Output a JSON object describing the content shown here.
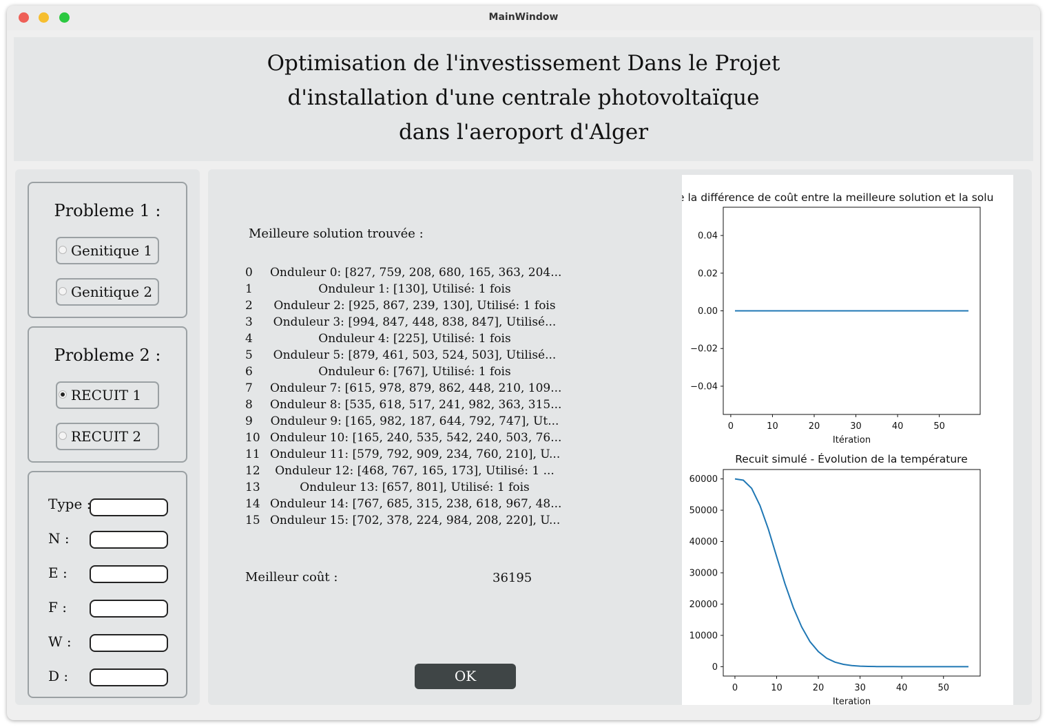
{
  "window": {
    "title": "MainWindow"
  },
  "header": {
    "line1": "Optimisation de l'investissement Dans le Projet",
    "line2": "d'installation d'une centrale photovoltaïque",
    "line3": "dans l'aeroport d'Alger"
  },
  "sidebar": {
    "problem1": {
      "title": "Probleme 1 :",
      "options": [
        {
          "label": "Genitique 1",
          "selected": false
        },
        {
          "label": "Genitique 2",
          "selected": false
        }
      ]
    },
    "problem2": {
      "title": "Probleme 2 :",
      "options": [
        {
          "label": "RECUIT 1",
          "selected": true
        },
        {
          "label": "RECUIT 2",
          "selected": false
        }
      ]
    },
    "params": [
      {
        "label": "Type :",
        "value": ""
      },
      {
        "label": "N   :",
        "value": ""
      },
      {
        "label": "E   :",
        "value": ""
      },
      {
        "label": "F   :",
        "value": ""
      },
      {
        "label": "W :",
        "value": ""
      },
      {
        "label": "D  :",
        "value": ""
      }
    ]
  },
  "results": {
    "best_solution_label": "Meilleure solution trouvée :",
    "rows": [
      {
        "index": "0",
        "text": "Onduleur 0: [827, 759, 208, 680, 165, 363, 204..."
      },
      {
        "index": "1",
        "text": "Onduleur 1: [130], Utilisé: 1 fois"
      },
      {
        "index": "2",
        "text": "Onduleur 2: [925, 867, 239, 130], Utilisé: 1 fois"
      },
      {
        "index": "3",
        "text": "Onduleur 3: [994, 847, 448, 838, 847], Utilisé..."
      },
      {
        "index": "4",
        "text": "Onduleur 4: [225], Utilisé: 1 fois"
      },
      {
        "index": "5",
        "text": "Onduleur 5: [879, 461, 503, 524, 503], Utilisé..."
      },
      {
        "index": "6",
        "text": "Onduleur 6: [767], Utilisé: 1 fois"
      },
      {
        "index": "7",
        "text": "Onduleur 7: [615, 978, 879, 862, 448, 210, 109..."
      },
      {
        "index": "8",
        "text": "Onduleur 8: [535, 618, 517, 241, 982, 363, 315..."
      },
      {
        "index": "9",
        "text": "Onduleur 9: [165, 982, 187, 644, 792, 747], Ut..."
      },
      {
        "index": "10",
        "text": "Onduleur 10: [165, 240, 535, 542, 240, 503, 76..."
      },
      {
        "index": "11",
        "text": "Onduleur 11: [579, 792, 909, 234, 760, 210], U..."
      },
      {
        "index": "12",
        "text": "Onduleur 12: [468, 767, 165, 173], Utilisé: 1 ..."
      },
      {
        "index": "13",
        "text": "Onduleur 13: [657, 801], Utilisé: 1 fois"
      },
      {
        "index": "14",
        "text": "Onduleur 14: [767, 685, 315, 238, 618, 967, 48..."
      },
      {
        "index": "15",
        "text": "Onduleur 15: [702, 378, 224, 984, 208, 220], U..."
      }
    ],
    "best_cost_label": "Meilleur coût  :",
    "best_cost_value": "36195",
    "ok_label": "OK"
  },
  "chart_data": [
    {
      "type": "line",
      "title": "e la différence de coût entre la meilleure solution et la solu",
      "xlabel": "Itération",
      "ylabel": "",
      "x": [
        1,
        57
      ],
      "y": [
        0.0,
        0.0
      ],
      "xlim": [
        -1.8,
        59.8
      ],
      "ylim": [
        -0.055,
        0.055
      ],
      "xticks": [
        "0",
        "10",
        "20",
        "30",
        "40",
        "50"
      ],
      "yticks": [
        "0.04",
        "0.02",
        "0.00",
        "−0.02",
        "−0.04"
      ],
      "color": "#1f77b4"
    },
    {
      "type": "line",
      "title": "Recuit simulé - Évolution de la température",
      "xlabel": "Iteration",
      "ylabel": "",
      "x": [
        0,
        2,
        4,
        6,
        8,
        10,
        12,
        14,
        16,
        18,
        20,
        22,
        24,
        26,
        28,
        30,
        32,
        34,
        36,
        38,
        40,
        42,
        44,
        46,
        48,
        50,
        52,
        54,
        56
      ],
      "y": [
        60000,
        59600,
        57000,
        51500,
        44000,
        35200,
        26500,
        18900,
        12700,
        8000,
        4800,
        2700,
        1450,
        740,
        360,
        170,
        75,
        32,
        13,
        5,
        2,
        1,
        0,
        0,
        0,
        0,
        0,
        0,
        0
      ],
      "xlim": [
        -2.8,
        58.8
      ],
      "ylim": [
        -3000,
        63000
      ],
      "xticks": [
        "0",
        "10",
        "20",
        "30",
        "40",
        "50"
      ],
      "yticks": [
        "60000",
        "50000",
        "40000",
        "30000",
        "20000",
        "10000",
        "0"
      ],
      "color": "#1f77b4"
    }
  ]
}
